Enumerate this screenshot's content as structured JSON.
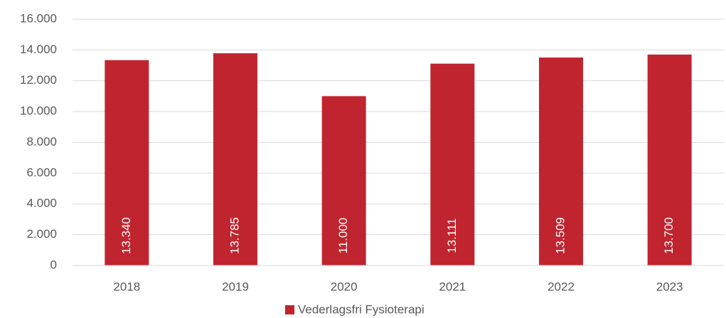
{
  "chart_data": {
    "type": "bar",
    "categories": [
      "2018",
      "2019",
      "2020",
      "2021",
      "2022",
      "2023"
    ],
    "series": [
      {
        "name": "Vederlagsfri Fysioterapi",
        "color": "#c0252f",
        "values": [
          13340,
          13785,
          11000,
          13111,
          13509,
          13700
        ],
        "value_labels": [
          "13.340",
          "13.785",
          "11.000",
          "13.111",
          "13.509",
          "13.700"
        ]
      }
    ],
    "ylim": [
      0,
      16000
    ],
    "yticks": [
      {
        "value": 0,
        "label": "0"
      },
      {
        "value": 2000,
        "label": "2.000"
      },
      {
        "value": 4000,
        "label": "4.000"
      },
      {
        "value": 6000,
        "label": "6.000"
      },
      {
        "value": 8000,
        "label": "8.000"
      },
      {
        "value": 10000,
        "label": "10.000"
      },
      {
        "value": 12000,
        "label": "12.000"
      },
      {
        "value": 14000,
        "label": "14.000"
      },
      {
        "value": 16000,
        "label": "16.000"
      }
    ],
    "grid": true,
    "legend": "bottom"
  }
}
